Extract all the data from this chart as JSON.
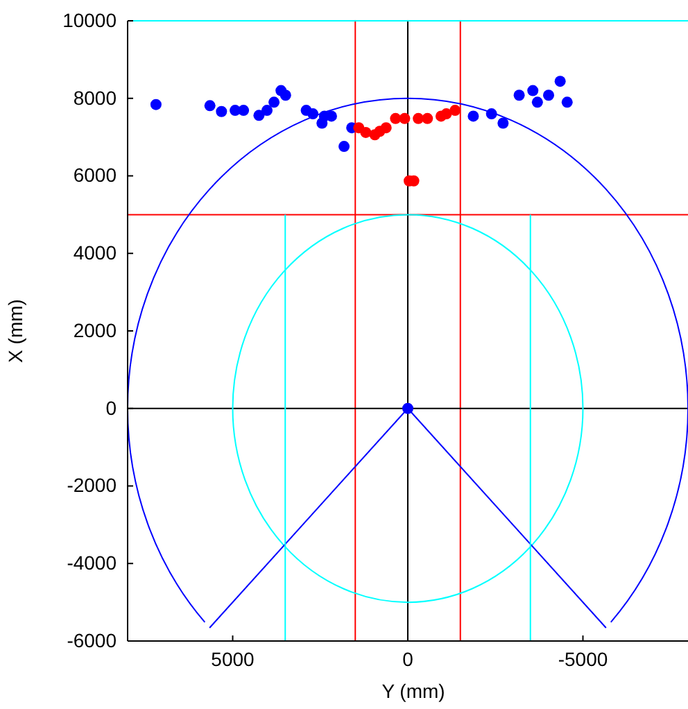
{
  "chart_data": {
    "type": "scatter",
    "xlabel": "Y (mm)",
    "ylabel": "X (mm)",
    "xlim": [
      8000,
      -8000
    ],
    "xticks": [
      5000,
      0,
      -5000
    ],
    "ylim": [
      -6000,
      10000
    ],
    "yticks": [
      -6000,
      -4000,
      -2000,
      0,
      2000,
      4000,
      6000,
      8000,
      10000
    ],
    "grid": false,
    "marker": "circle",
    "ref_lines": [
      {
        "axis": "x",
        "value": 1500,
        "color": "#ff0000"
      },
      {
        "axis": "x",
        "value": -1500,
        "color": "#ff0000"
      },
      {
        "axis": "y",
        "value": 5000,
        "color": "#ff0000"
      },
      {
        "axis": "x",
        "value": 0,
        "color": "#000000"
      },
      {
        "axis": "y",
        "value": 0,
        "color": "#000000"
      },
      {
        "axis": "y",
        "value": 10000,
        "color": "#00ffff"
      }
    ],
    "series": [
      {
        "type": "line",
        "color": "#0000ff",
        "marker": "none",
        "x": [
          -5660,
          0,
          5660
        ],
        "values": [
          -5660,
          0,
          -5660
        ]
      },
      {
        "type": "line",
        "color": "#00ffff",
        "marker": "none",
        "x": [
          3500,
          3500
        ],
        "values": [
          5000,
          -6000
        ]
      },
      {
        "type": "line",
        "color": "#00ffff",
        "marker": "none",
        "x": [
          -3500,
          -3500
        ],
        "values": [
          5000,
          -6000
        ]
      },
      {
        "color": "#0000ff",
        "x": [
          7190,
          5650,
          5320,
          4930,
          4690,
          4250,
          4020,
          3820,
          3620,
          3490,
          2900,
          2710,
          2450,
          2380,
          2180,
          1600,
          1820,
          -1870,
          -2390,
          -2720,
          -3180,
          -3570,
          -3700,
          -4020,
          -4350,
          -4550,
          0
        ],
        "values": [
          7840,
          7810,
          7660,
          7690,
          7690,
          7560,
          7690,
          7900,
          8200,
          8080,
          7690,
          7600,
          7360,
          7540,
          7540,
          7240,
          6760,
          7540,
          7600,
          7360,
          8080,
          8200,
          7900,
          8080,
          8440,
          7900,
          0
        ]
      },
      {
        "color": "#ff0000",
        "x": [
          1400,
          1200,
          940,
          800,
          620,
          350,
          90,
          -300,
          -560,
          -950,
          -1100,
          -1350,
          -40,
          -170
        ],
        "values": [
          7240,
          7120,
          7060,
          7150,
          7240,
          7480,
          7480,
          7480,
          7480,
          7540,
          7600,
          7690,
          5870,
          5870
        ]
      }
    ]
  }
}
